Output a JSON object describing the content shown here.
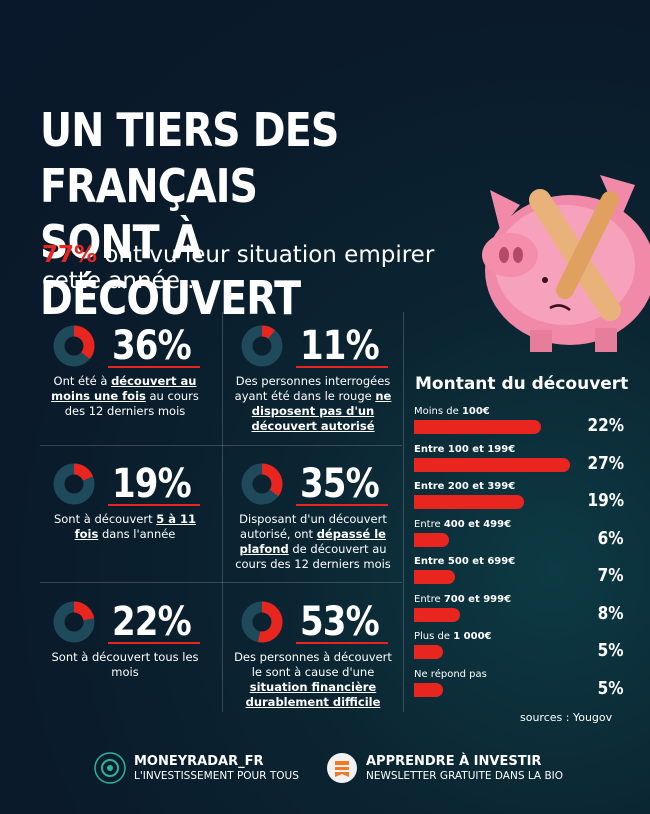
{
  "header": {
    "title_line1": "UN TIERS DES FRANÇAIS",
    "title_line2": "SONT À DÉCOUVERT",
    "subtitle_pct": "77%",
    "subtitle_rest": " ont vu leur situation empirer cette année..."
  },
  "stats": [
    {
      "value": "36%",
      "fraction": 0.36,
      "desc_html": "Ont été à <b>découvert au moins une fois</b> au cours des 12 derniers mois"
    },
    {
      "value": "11%",
      "fraction": 0.11,
      "desc_html": "Des personnes interrogées ayant été dans le rouge <b>ne disposent pas d'un découvert autorisé</b>"
    },
    {
      "value": "19%",
      "fraction": 0.19,
      "desc_html": "Sont à découvert <b>5 à 11 fois</b> dans l'année"
    },
    {
      "value": "35%",
      "fraction": 0.35,
      "desc_html": "Disposant d'un découvert autorisé, ont <b>dépassé le plafond</b> de découvert au cours des 12 derniers mois"
    },
    {
      "value": "22%",
      "fraction": 0.22,
      "desc_html": "Sont à découvert tous les mois"
    },
    {
      "value": "53%",
      "fraction": 0.53,
      "desc_html": "Des personnes à découvert le sont à cause d'une <b>situation financière durablement difficile</b>"
    }
  ],
  "chart_data": {
    "type": "bar",
    "title": "Montant du découvert",
    "categories_html": [
      "Moins  de <span class='bold'>100€</span>",
      "<span class='bold'>Entre 100 et 199€</span>",
      "<span class='bold'>Entre 200 et 399€</span>",
      "Entre <span class='bold'>400 et 499€</span>",
      "<span class='bold'>Entre 500 et 699€</span>",
      "Entre <span class='bold'>700 et 999€</span>",
      "Plus  de <span class='bold'>1 000€</span>",
      "Ne répond pas"
    ],
    "values": [
      22,
      27,
      19,
      6,
      7,
      8,
      5,
      5
    ],
    "value_labels": [
      "22%",
      "27%",
      "19%",
      "6%",
      "7%",
      "8%",
      "5%",
      "5%"
    ],
    "xlim": [
      0,
      28
    ],
    "sources": "sources : Yougov"
  },
  "footer": {
    "left_title": "MONEYRADAR_FR",
    "left_sub": "L'INVESTISSEMENT POUR TOUS",
    "right_title": "APPRENDRE À INVESTIR",
    "right_sub": "NEWSLETTER GRATUITE DANS LA BIO"
  },
  "colors": {
    "accent": "#e8261f",
    "donut_bg": "#1f4a5c",
    "footer_left_icon": "#0b1d2a",
    "footer_right_icon": "#f2f2f2"
  }
}
